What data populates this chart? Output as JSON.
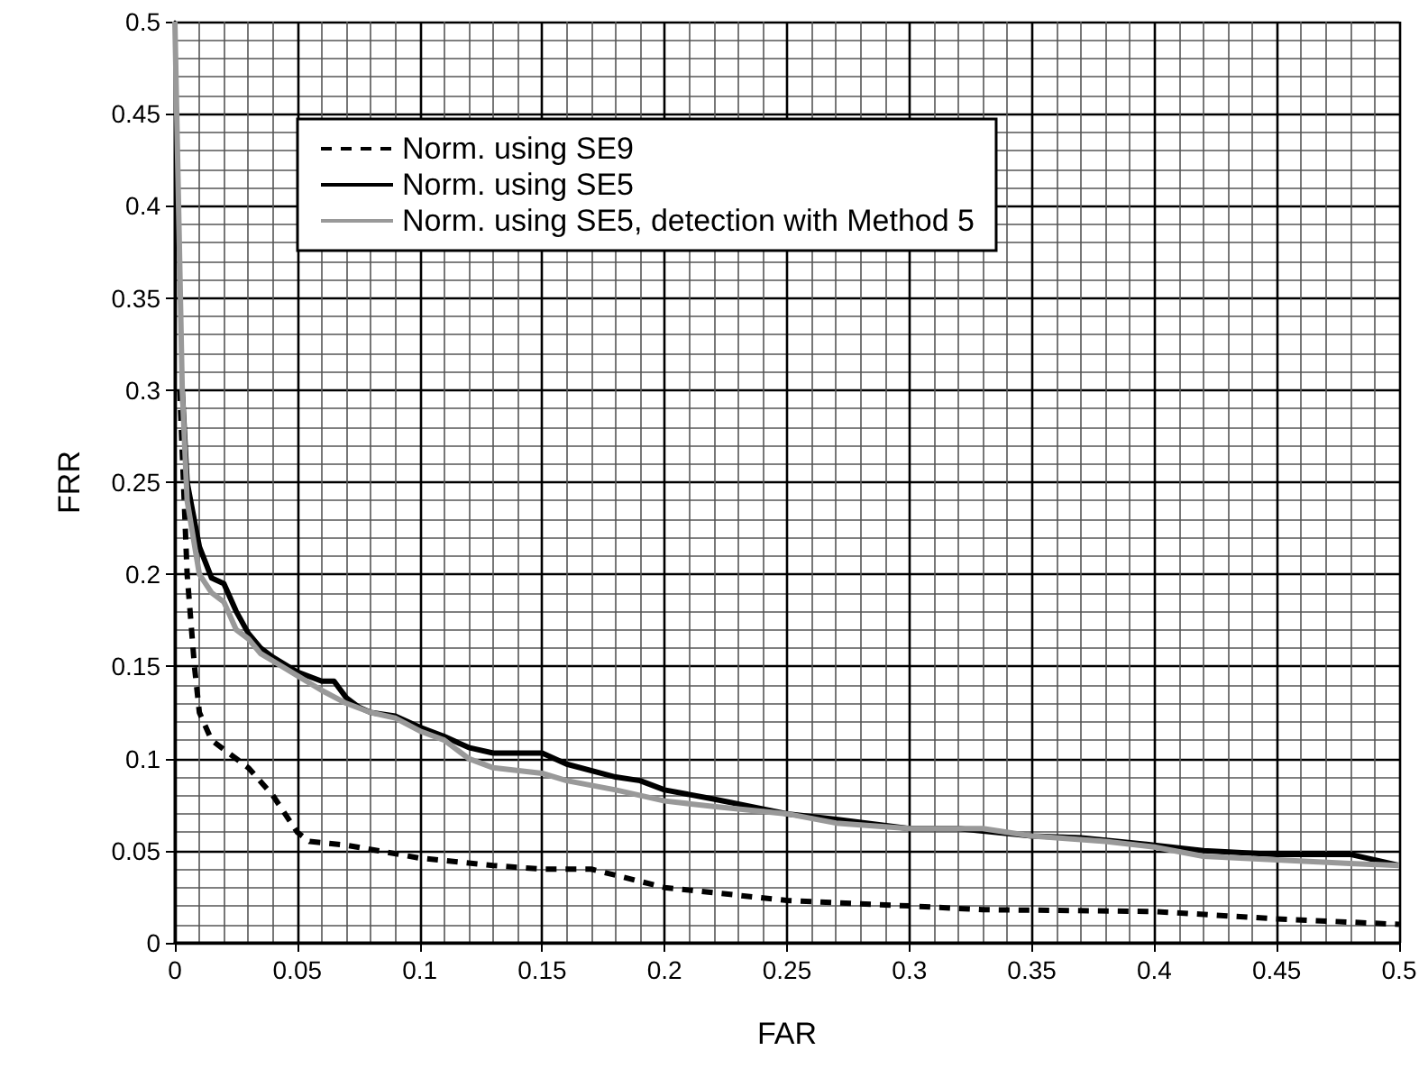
{
  "chart_data": {
    "type": "line",
    "xlabel": "FAR",
    "ylabel": "FRR",
    "xlim": [
      0,
      0.5
    ],
    "ylim": [
      0,
      0.5
    ],
    "xticks": [
      0,
      0.05,
      0.1,
      0.15,
      0.2,
      0.25,
      0.3,
      0.35,
      0.4,
      0.45,
      0.5
    ],
    "yticks": [
      0,
      0.05,
      0.1,
      0.15,
      0.2,
      0.25,
      0.3,
      0.35,
      0.4,
      0.45,
      0.5
    ],
    "grid": true,
    "legend": "top left",
    "marker": "none",
    "series": [
      {
        "name": "Norm. using SE9",
        "color": "#000000",
        "line_style": "dashed",
        "x": [
          0.002,
          0.005,
          0.008,
          0.01,
          0.015,
          0.02,
          0.03,
          0.04,
          0.05,
          0.055,
          0.07,
          0.1,
          0.13,
          0.15,
          0.17,
          0.2,
          0.25,
          0.3,
          0.33,
          0.4,
          0.45,
          0.5
        ],
        "values": [
          0.3,
          0.2,
          0.15,
          0.125,
          0.11,
          0.105,
          0.095,
          0.08,
          0.06,
          0.055,
          0.053,
          0.046,
          0.042,
          0.04,
          0.04,
          0.03,
          0.023,
          0.02,
          0.018,
          0.017,
          0.013,
          0.01
        ]
      },
      {
        "name": "Norm. using SE5",
        "color": "#000000",
        "line_style": "solid",
        "x": [
          0.003,
          0.005,
          0.01,
          0.015,
          0.02,
          0.025,
          0.03,
          0.035,
          0.04,
          0.05,
          0.06,
          0.065,
          0.07,
          0.075,
          0.08,
          0.09,
          0.1,
          0.11,
          0.12,
          0.13,
          0.15,
          0.16,
          0.18,
          0.19,
          0.2,
          0.22,
          0.25,
          0.27,
          0.3,
          0.32,
          0.35,
          0.37,
          0.4,
          0.42,
          0.45,
          0.48,
          0.5
        ],
        "values": [
          0.3,
          0.25,
          0.215,
          0.198,
          0.195,
          0.18,
          0.168,
          0.16,
          0.155,
          0.147,
          0.142,
          0.142,
          0.133,
          0.128,
          0.125,
          0.123,
          0.117,
          0.112,
          0.106,
          0.103,
          0.103,
          0.097,
          0.09,
          0.088,
          0.083,
          0.078,
          0.07,
          0.067,
          0.062,
          0.062,
          0.058,
          0.057,
          0.053,
          0.05,
          0.048,
          0.048,
          0.042
        ]
      },
      {
        "name": "Norm. using SE5, detection with Method 5",
        "color": "#999999",
        "line_style": "solid",
        "x": [
          0,
          0.003,
          0.005,
          0.01,
          0.015,
          0.02,
          0.025,
          0.03,
          0.035,
          0.04,
          0.05,
          0.06,
          0.07,
          0.08,
          0.09,
          0.1,
          0.11,
          0.12,
          0.13,
          0.15,
          0.16,
          0.18,
          0.2,
          0.22,
          0.25,
          0.27,
          0.3,
          0.33,
          0.35,
          0.38,
          0.4,
          0.42,
          0.45,
          0.48,
          0.5
        ],
        "values": [
          0.5,
          0.3,
          0.24,
          0.2,
          0.19,
          0.185,
          0.17,
          0.165,
          0.157,
          0.153,
          0.145,
          0.137,
          0.13,
          0.125,
          0.122,
          0.115,
          0.11,
          0.1,
          0.095,
          0.092,
          0.088,
          0.083,
          0.077,
          0.074,
          0.07,
          0.065,
          0.062,
          0.062,
          0.058,
          0.055,
          0.052,
          0.047,
          0.045,
          0.043,
          0.042
        ]
      }
    ]
  }
}
